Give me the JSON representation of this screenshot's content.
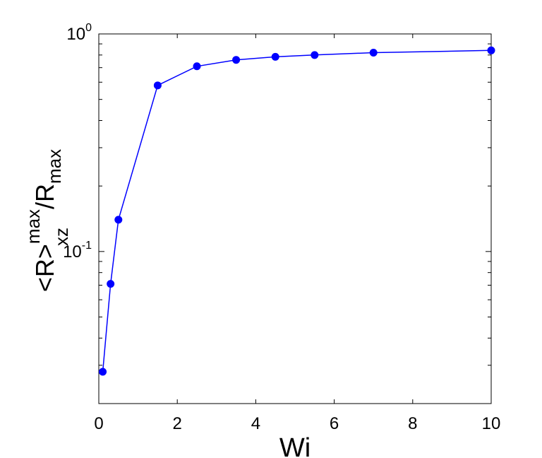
{
  "chart_data": {
    "type": "line",
    "xlabel": "Wi",
    "ylabel": {
      "main": "<R>",
      "superscript": "max",
      "subscript": "xz",
      "divider": "/R",
      "divider_subscript": "max"
    },
    "xlim": [
      0,
      10
    ],
    "ylim": [
      0.02,
      1.0
    ],
    "yscale": "log",
    "grid": false,
    "x_ticks": [
      "0",
      "2",
      "4",
      "6",
      "8",
      "10"
    ],
    "y_ticks": [
      {
        "base": "10",
        "exponent": "0"
      },
      {
        "base": "10",
        "exponent": "-1"
      }
    ],
    "series": [
      {
        "color": "#0000ff",
        "marker": "circle",
        "x": [
          0.1,
          0.3,
          0.5,
          1.5,
          2.5,
          3.5,
          4.5,
          5.5,
          7.0,
          10.0
        ],
        "y": [
          0.028,
          0.071,
          0.14,
          0.58,
          0.71,
          0.76,
          0.785,
          0.8,
          0.82,
          0.84
        ]
      }
    ]
  }
}
